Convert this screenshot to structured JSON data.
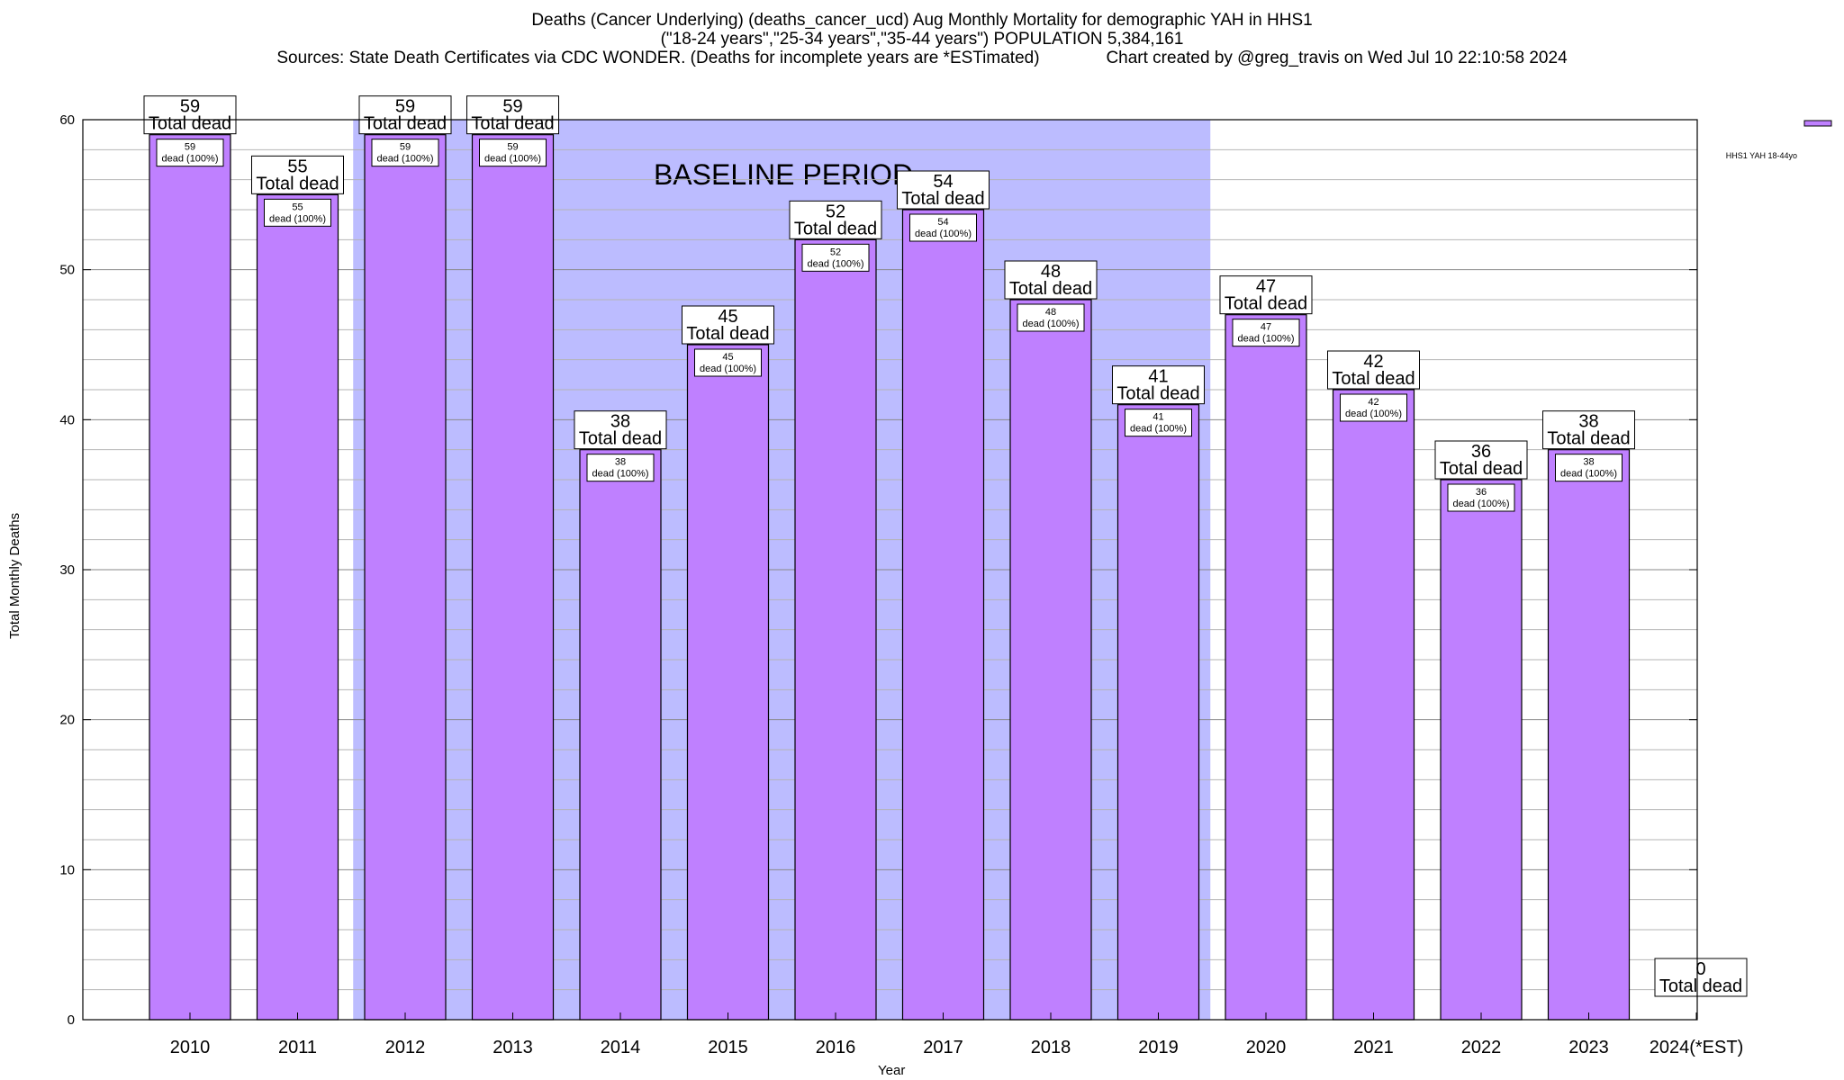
{
  "chart": {
    "title_line1": "Deaths (Cancer Underlying) (deaths_cancer_ucd) Aug Monthly Mortality for demographic YAH in HHS1",
    "title_line2": "(\"18-24 years\",\"25-34 years\",\"35-44 years\") POPULATION 5,384,161",
    "title_line3": "Sources: State Death Certificates via CDC WONDER. (Deaths for incomplete years are *ESTimated)              Chart created by @greg_travis on Wed Jul 10 22:10:58 2024"
  },
  "chart_data": {
    "type": "bar",
    "xlabel": "Year",
    "ylabel": "Total Monthly Deaths",
    "ylim": [
      0,
      60
    ],
    "yticks": [
      0,
      10,
      20,
      30,
      40,
      50,
      60
    ],
    "grid": "horizontal",
    "legend_position": "top-right",
    "categories": [
      "2010",
      "2011",
      "2012",
      "2013",
      "2014",
      "2015",
      "2016",
      "2017",
      "2018",
      "2019",
      "2020",
      "2021",
      "2022",
      "2023",
      "2024(*EST)"
    ],
    "series": [
      {
        "name": "HHS1 YAH 18-44yo",
        "values": [
          59,
          55,
          59,
          59,
          38,
          45,
          52,
          54,
          48,
          41,
          47,
          42,
          36,
          38,
          0
        ],
        "color": "#bf80ff"
      }
    ],
    "total_label_suffix": "Total dead",
    "inner_label_suffix": "dead (100%)",
    "baseline_period": {
      "label": "BASELINE PERIOD",
      "from": "2012",
      "to": "2019",
      "color": "#bcbcff"
    }
  }
}
